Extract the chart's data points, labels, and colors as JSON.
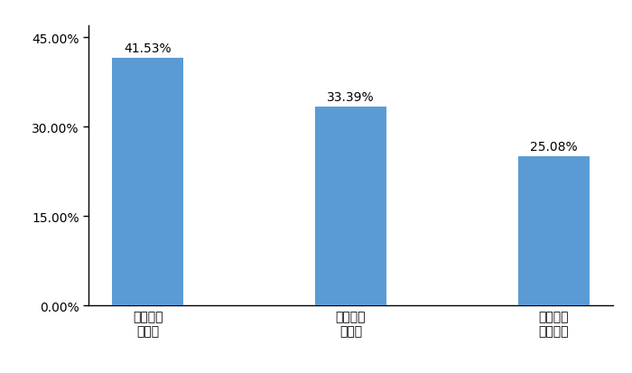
{
  "categories": [
    "自有車輆\n有貸款",
    "自有車輆\n無貸款",
    "受雇駕駛\n給老板開"
  ],
  "values": [
    0.4153,
    0.3339,
    0.2508
  ],
  "labels": [
    "41.53%",
    "33.39%",
    "25.08%"
  ],
  "bar_color": "#5B9BD5",
  "yticks": [
    0.0,
    0.15,
    0.3,
    0.45
  ],
  "ytick_labels": [
    "0.00%",
    "15.00%",
    "30.00%",
    "45.00%"
  ],
  "ylim": [
    0,
    0.47
  ],
  "background_color": "#ffffff",
  "label_fontsize": 10,
  "tick_fontsize": 10,
  "bar_width": 0.35
}
